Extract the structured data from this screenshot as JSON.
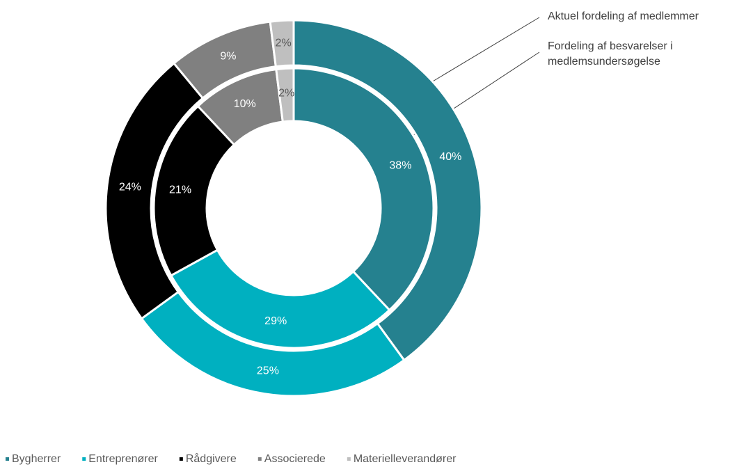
{
  "chart_data": {
    "type": "donut",
    "categories": [
      "Bygherrer",
      "Entreprenører",
      "Rådgivere",
      "Associerede",
      "Materielleverandører"
    ],
    "colors": [
      "#25818f",
      "#00b0c0",
      "#000000",
      "#808080",
      "#bfbfbf"
    ],
    "series": [
      {
        "name": "Aktuel fordeling af medlemmer",
        "values": [
          40,
          25,
          24,
          9,
          2
        ],
        "value_labels": [
          "40%",
          "25%",
          "24%",
          "9%",
          "2%"
        ]
      },
      {
        "name": "Fordeling af besvarelser i medlemsundersøgelse",
        "values": [
          38,
          29,
          21,
          10,
          2
        ],
        "value_labels": [
          "38%",
          "29%",
          "21%",
          "10%",
          "2%"
        ]
      }
    ],
    "legend": "bottom"
  }
}
